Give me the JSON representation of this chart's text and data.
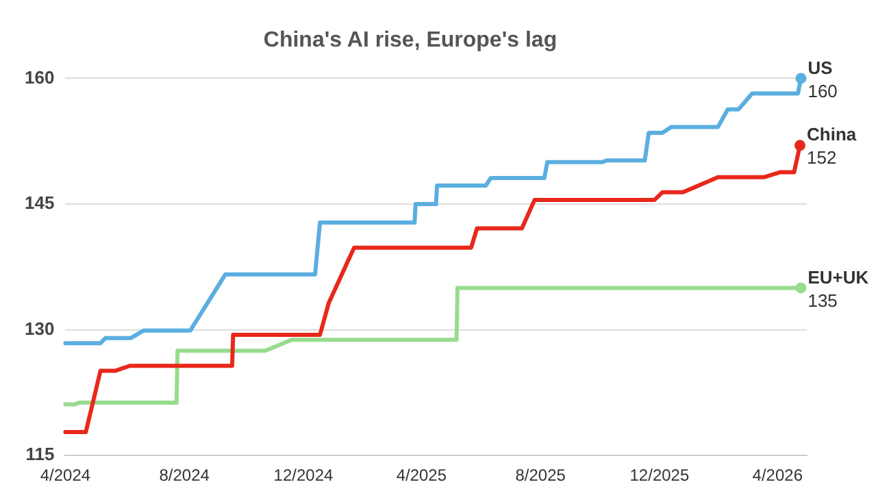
{
  "chart_data": {
    "type": "line",
    "title": "China's AI rise, Europe's lag",
    "xlim": [
      "2024-04-01",
      "2026-05-01"
    ],
    "xticks": [
      {
        "value": "2024-04-01",
        "label": "4/2024"
      },
      {
        "value": "2024-08-01",
        "label": "8/2024"
      },
      {
        "value": "2024-12-01",
        "label": "12/2024"
      },
      {
        "value": "2025-04-01",
        "label": "4/2025"
      },
      {
        "value": "2025-08-01",
        "label": "8/2025"
      },
      {
        "value": "2025-12-01",
        "label": "12/2025"
      },
      {
        "value": "2026-04-01",
        "label": "4/2026"
      }
    ],
    "ylim": [
      115,
      160
    ],
    "yticks": [
      115,
      130,
      145,
      160
    ],
    "grid": "y",
    "series": [
      {
        "name": "US",
        "color": "#5aaee0",
        "x": [
          "2024-04-01",
          "2024-05-07",
          "2024-05-12",
          "2024-06-07",
          "2024-06-20",
          "2024-08-07",
          "2024-09-12",
          "2024-12-13",
          "2024-12-18",
          "2025-03-25",
          "2025-03-26",
          "2025-04-16",
          "2025-04-17",
          "2025-06-06",
          "2025-06-11",
          "2025-08-05",
          "2025-08-08",
          "2025-10-03",
          "2025-10-08",
          "2025-11-16",
          "2025-11-20",
          "2025-12-04",
          "2025-12-13",
          "2026-01-30",
          "2026-02-09",
          "2026-02-20",
          "2026-03-06",
          "2026-04-22",
          "2026-04-25"
        ],
        "values": [
          128.4,
          128.4,
          129.0,
          129.0,
          129.9,
          129.9,
          136.6,
          136.6,
          142.8,
          142.8,
          145.0,
          145.0,
          147.2,
          147.2,
          148.1,
          148.1,
          150.0,
          150.0,
          150.2,
          150.2,
          153.5,
          153.5,
          154.2,
          154.2,
          156.3,
          156.3,
          158.2,
          158.2,
          160
        ],
        "value_labels": [
          null,
          null,
          null,
          null,
          null,
          null,
          null,
          null,
          null,
          null,
          null,
          null,
          null,
          null,
          null,
          null,
          null,
          null,
          null,
          null,
          null,
          null,
          null,
          null,
          null,
          null,
          null,
          null,
          "160"
        ]
      },
      {
        "name": "China",
        "color": "#e8281c",
        "x": [
          "2024-04-01",
          "2024-04-22",
          "2024-05-07",
          "2024-05-22",
          "2024-06-06",
          "2024-09-19",
          "2024-09-20",
          "2024-12-18",
          "2024-12-27",
          "2025-01-22",
          "2025-05-22",
          "2025-05-28",
          "2025-07-13",
          "2025-07-26",
          "2025-11-26",
          "2025-12-04",
          "2025-12-25",
          "2026-01-30",
          "2026-03-18",
          "2026-04-04",
          "2026-04-18",
          "2026-04-24"
        ],
        "values": [
          117.8,
          117.8,
          125.1,
          125.1,
          125.7,
          125.7,
          129.4,
          129.4,
          133.2,
          139.8,
          139.8,
          142.1,
          142.1,
          145.5,
          145.5,
          146.4,
          146.4,
          148.2,
          148.2,
          148.8,
          148.8,
          152
        ],
        "value_labels": [
          null,
          null,
          null,
          null,
          null,
          null,
          null,
          null,
          null,
          null,
          null,
          null,
          null,
          null,
          null,
          null,
          null,
          null,
          null,
          null,
          null,
          "152"
        ]
      },
      {
        "name": "EU+UK",
        "color": "#98dc8e",
        "x": [
          "2024-04-01",
          "2024-04-11",
          "2024-04-15",
          "2024-07-24",
          "2024-07-25",
          "2024-10-23",
          "2024-11-19",
          "2025-05-07",
          "2025-05-08",
          "2026-04-25"
        ],
        "values": [
          121.1,
          121.1,
          121.3,
          121.3,
          127.5,
          127.5,
          128.8,
          128.8,
          135,
          135
        ],
        "value_labels": [
          null,
          null,
          null,
          null,
          null,
          null,
          null,
          null,
          null,
          "135"
        ]
      }
    ]
  }
}
